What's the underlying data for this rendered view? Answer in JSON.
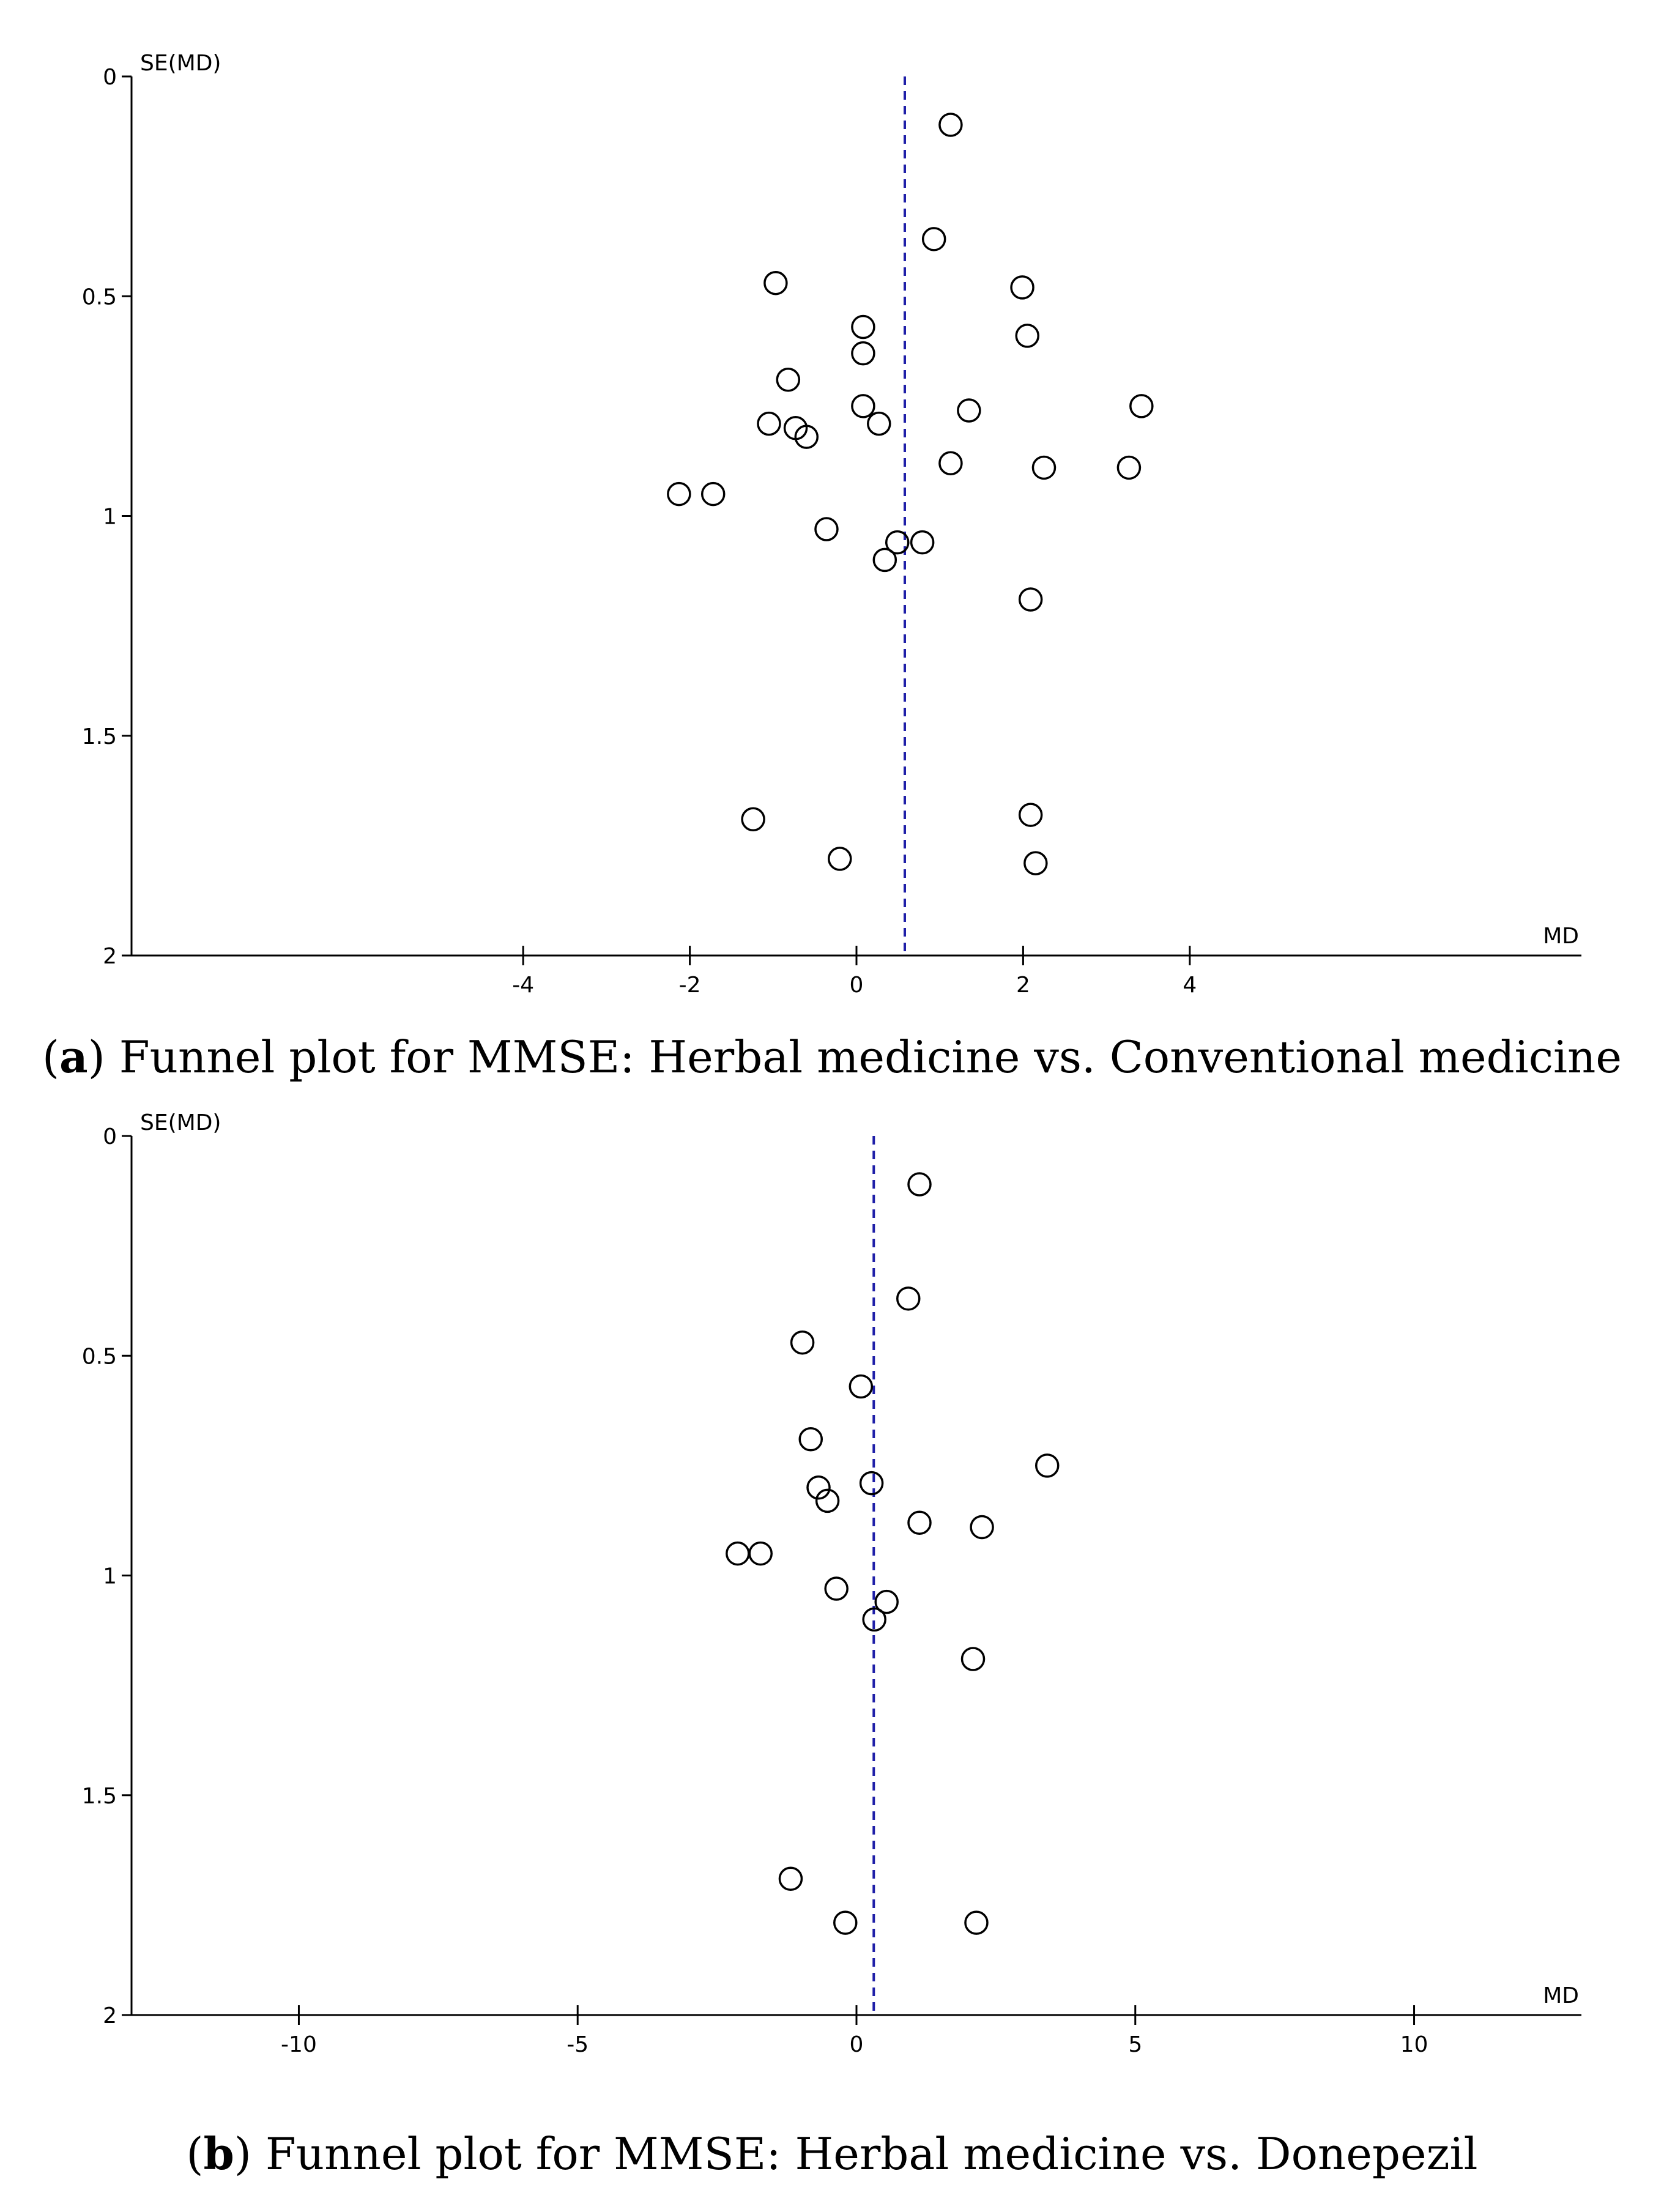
{
  "chart_data": [
    {
      "type": "scatter",
      "subtype": "funnel",
      "panel": "a",
      "caption_letter": "a",
      "caption_text": "Funnel plot for MMSE: Herbal medicine vs. Conventional medicine",
      "xlabel": "MD",
      "ylabel": "SE(MD)",
      "xlim": [
        -8.7,
        8.7
      ],
      "ylim": [
        0,
        2
      ],
      "y_inverted": true,
      "xticks": [
        -4,
        -2,
        0,
        2,
        4
      ],
      "xtick_labels": [
        "-4",
        "-2",
        "0",
        "2",
        "4"
      ],
      "yticks": [
        0,
        0.5,
        1,
        1.5,
        2
      ],
      "ytick_labels": [
        "0",
        "0.5",
        "1",
        "1.5",
        "2"
      ],
      "pooled_estimate_line": 0.58,
      "points": [
        {
          "x": 1.13,
          "y": 0.11
        },
        {
          "x": 0.93,
          "y": 0.37
        },
        {
          "x": -0.97,
          "y": 0.47
        },
        {
          "x": 1.99,
          "y": 0.48
        },
        {
          "x": 0.08,
          "y": 0.57
        },
        {
          "x": 2.05,
          "y": 0.59
        },
        {
          "x": 0.08,
          "y": 0.63
        },
        {
          "x": -0.82,
          "y": 0.69
        },
        {
          "x": 0.08,
          "y": 0.75
        },
        {
          "x": 1.35,
          "y": 0.76
        },
        {
          "x": 3.42,
          "y": 0.75
        },
        {
          "x": -1.05,
          "y": 0.79
        },
        {
          "x": -0.73,
          "y": 0.8
        },
        {
          "x": 0.27,
          "y": 0.79
        },
        {
          "x": -0.6,
          "y": 0.82
        },
        {
          "x": 1.13,
          "y": 0.88
        },
        {
          "x": 2.25,
          "y": 0.89
        },
        {
          "x": 3.27,
          "y": 0.89
        },
        {
          "x": -2.13,
          "y": 0.95
        },
        {
          "x": -1.72,
          "y": 0.95
        },
        {
          "x": -0.36,
          "y": 1.03
        },
        {
          "x": 0.49,
          "y": 1.06
        },
        {
          "x": 0.79,
          "y": 1.06
        },
        {
          "x": 0.34,
          "y": 1.1
        },
        {
          "x": 2.09,
          "y": 1.19
        },
        {
          "x": -1.24,
          "y": 1.69
        },
        {
          "x": 2.09,
          "y": 1.68
        },
        {
          "x": -0.2,
          "y": 1.78
        },
        {
          "x": 2.15,
          "y": 1.79
        }
      ]
    },
    {
      "type": "scatter",
      "subtype": "funnel",
      "panel": "b",
      "caption_letter": "b",
      "caption_text": "Funnel plot for MMSE: Herbal medicine vs. Donepezil",
      "xlabel": "MD",
      "ylabel": "SE(MD)",
      "xlim": [
        -13,
        13
      ],
      "ylim": [
        0,
        2
      ],
      "y_inverted": true,
      "xticks": [
        -10,
        -5,
        0,
        5,
        10
      ],
      "xtick_labels": [
        "-10",
        "-5",
        "0",
        "5",
        "10"
      ],
      "yticks": [
        0,
        0.5,
        1,
        1.5,
        2
      ],
      "ytick_labels": [
        "0",
        "0.5",
        "1",
        "1.5",
        "2"
      ],
      "pooled_estimate_line": 0.31,
      "points": [
        {
          "x": 1.13,
          "y": 0.11
        },
        {
          "x": 0.93,
          "y": 0.37
        },
        {
          "x": -0.97,
          "y": 0.47
        },
        {
          "x": 0.08,
          "y": 0.57
        },
        {
          "x": -0.82,
          "y": 0.69
        },
        {
          "x": 3.42,
          "y": 0.75
        },
        {
          "x": -0.68,
          "y": 0.8
        },
        {
          "x": 0.27,
          "y": 0.79
        },
        {
          "x": -0.52,
          "y": 0.83
        },
        {
          "x": 1.13,
          "y": 0.88
        },
        {
          "x": 2.25,
          "y": 0.89
        },
        {
          "x": -2.13,
          "y": 0.95
        },
        {
          "x": -1.72,
          "y": 0.95
        },
        {
          "x": -0.36,
          "y": 1.03
        },
        {
          "x": 0.54,
          "y": 1.06
        },
        {
          "x": 0.32,
          "y": 1.1
        },
        {
          "x": 2.09,
          "y": 1.19
        },
        {
          "x": -1.18,
          "y": 1.69
        },
        {
          "x": -0.2,
          "y": 1.79
        },
        {
          "x": 2.15,
          "y": 1.79
        }
      ]
    }
  ]
}
